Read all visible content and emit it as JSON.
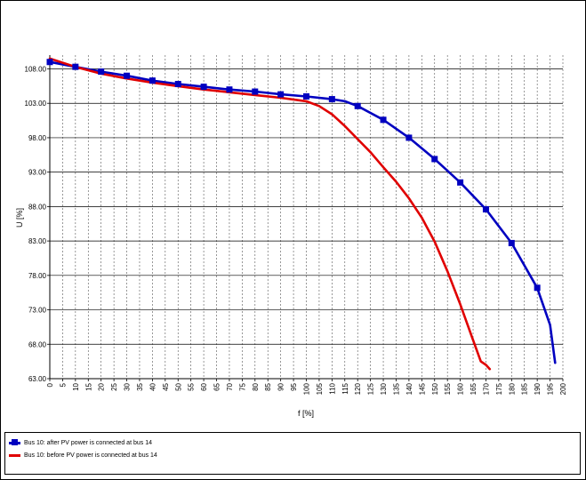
{
  "chart_data": {
    "type": "line",
    "title": "",
    "xlabel": "f [%]",
    "ylabel": "U [%]",
    "xlim": [
      0,
      200
    ],
    "ylim": [
      63,
      110
    ],
    "grid": true,
    "legend_position": "bottom",
    "x_ticks": [
      "0",
      "5",
      "10",
      "15",
      "20",
      "25",
      "30",
      "35",
      "40",
      "45",
      "50",
      "55",
      "60",
      "65",
      "70",
      "75",
      "80",
      "85",
      "90",
      "95",
      "100",
      "105",
      "110",
      "115",
      "120",
      "125",
      "130",
      "135",
      "140",
      "145",
      "150",
      "155",
      "160",
      "165",
      "170",
      "175",
      "180",
      "185",
      "190",
      "195",
      "200"
    ],
    "y_ticks": [
      "63.00",
      "68.00",
      "73.00",
      "78.00",
      "83.00",
      "88.00",
      "93.00",
      "98.00",
      "103.00",
      "108.00"
    ],
    "series": [
      {
        "name": "Bus 10: after PV power is connected at bus 14",
        "color": "#0000c0",
        "marker": "square",
        "x": [
          0,
          10,
          20,
          30,
          40,
          50,
          60,
          70,
          80,
          90,
          100,
          110,
          115,
          120,
          130,
          140,
          150,
          160,
          170,
          180,
          190,
          195,
          197
        ],
        "y": [
          109.0,
          108.3,
          107.6,
          107.0,
          106.3,
          105.8,
          105.4,
          105.0,
          104.7,
          104.3,
          104.0,
          103.6,
          103.3,
          102.6,
          100.6,
          98.0,
          94.9,
          91.5,
          87.6,
          82.7,
          76.2,
          70.8,
          65.3
        ],
        "marker_x": [
          0,
          10,
          20,
          30,
          40,
          50,
          60,
          70,
          80,
          90,
          100,
          110,
          120,
          130,
          140,
          150,
          160,
          170,
          180,
          190
        ]
      },
      {
        "name": "Bus 10: before PV power is connected at bus 14",
        "color": "#e00000",
        "marker": "none",
        "x": [
          0,
          10,
          20,
          30,
          40,
          50,
          60,
          70,
          80,
          90,
          100,
          105,
          110,
          115,
          120,
          125,
          130,
          135,
          140,
          145,
          150,
          155,
          160,
          165,
          168,
          170,
          171.5
        ],
        "y": [
          109.5,
          108.3,
          107.3,
          106.6,
          106.0,
          105.5,
          105.0,
          104.6,
          104.2,
          103.8,
          103.3,
          102.6,
          101.4,
          99.7,
          97.8,
          95.9,
          93.7,
          91.6,
          89.2,
          86.4,
          82.9,
          78.6,
          73.8,
          68.6,
          65.5,
          65.0,
          64.4
        ]
      }
    ]
  }
}
